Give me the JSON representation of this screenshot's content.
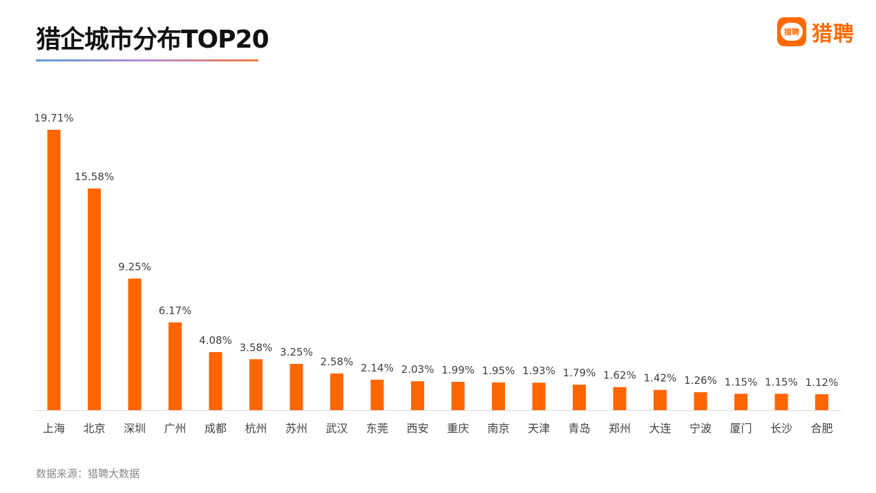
{
  "header": {
    "title": "猎企城市分布TOP20"
  },
  "logo": {
    "badge_text": "猎聘",
    "name": "猎聘"
  },
  "footer": {
    "source": "数据来源：猎聘大数据"
  },
  "colors": {
    "bar": "#ff6600",
    "axis": "#d9d9d9",
    "label": "#404040",
    "accent": "#ff6a00"
  },
  "chart_data": {
    "type": "bar",
    "title": "猎企城市分布TOP20",
    "xlabel": "",
    "ylabel": "",
    "categories": [
      "上海",
      "北京",
      "深圳",
      "广州",
      "成都",
      "杭州",
      "苏州",
      "武汉",
      "东莞",
      "西安",
      "重庆",
      "南京",
      "天津",
      "青岛",
      "郑州",
      "大连",
      "宁波",
      "厦门",
      "长沙",
      "合肥"
    ],
    "values": [
      19.71,
      15.58,
      9.25,
      6.17,
      4.08,
      3.58,
      3.25,
      2.58,
      2.14,
      2.03,
      1.99,
      1.95,
      1.93,
      1.79,
      1.62,
      1.42,
      1.26,
      1.15,
      1.15,
      1.12
    ],
    "value_labels": [
      "19.71%",
      "15.58%",
      "9.25%",
      "6.17%",
      "4.08%",
      "3.58%",
      "3.25%",
      "2.58%",
      "2.14%",
      "2.03%",
      "1.99%",
      "1.95%",
      "1.93%",
      "1.79%",
      "1.62%",
      "1.42%",
      "1.26%",
      "1.15%",
      "1.15%",
      "1.12%"
    ],
    "ylim": [
      0,
      19.71
    ],
    "grid": false,
    "legend": "none"
  }
}
